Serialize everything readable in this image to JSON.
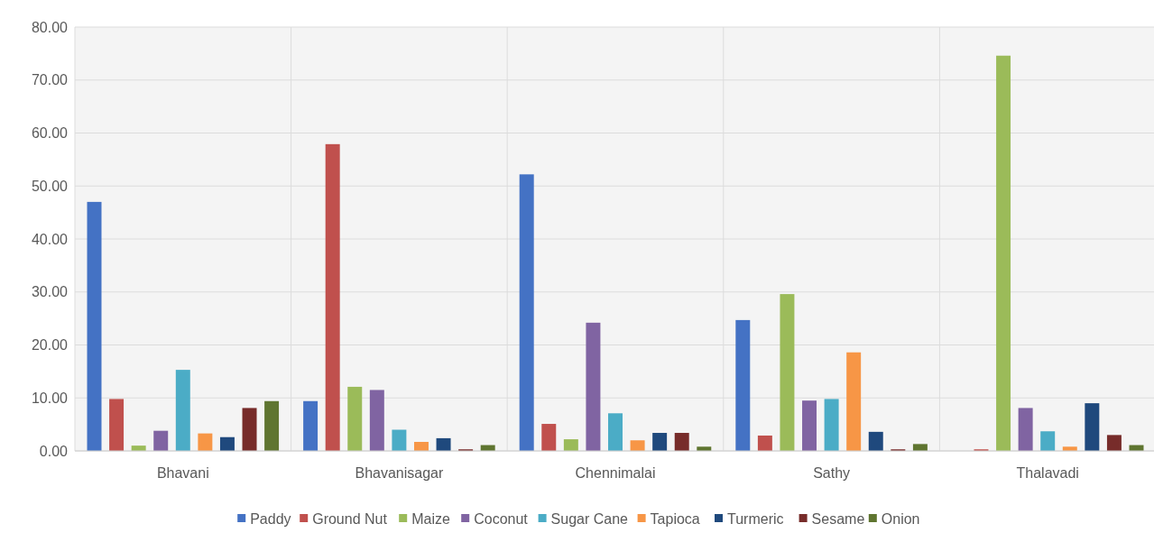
{
  "chart_data": {
    "type": "bar",
    "categories": [
      "Bhavani",
      "Bhavanisagar",
      "Chennimalai",
      "Sathy",
      "Thalavadi"
    ],
    "series": [
      {
        "name": "Paddy",
        "color": "#4472c4",
        "values": [
          47,
          9.4,
          52.2,
          24.7,
          0
        ]
      },
      {
        "name": "Ground Nut",
        "color": "#c0504d",
        "values": [
          9.8,
          57.9,
          5.1,
          2.9,
          0.3
        ]
      },
      {
        "name": "Maize",
        "color": "#9bbb59",
        "values": [
          1,
          12.1,
          2.2,
          29.6,
          74.6
        ]
      },
      {
        "name": "Coconut",
        "color": "#8064a2",
        "values": [
          3.8,
          11.5,
          24.2,
          9.5,
          8.1
        ]
      },
      {
        "name": "Sugar Cane",
        "color": "#4bacc6",
        "values": [
          15.3,
          4,
          7.1,
          9.8,
          3.7
        ]
      },
      {
        "name": "Tapioca",
        "color": "#f79646",
        "values": [
          3.3,
          1.7,
          2,
          18.6,
          0.8
        ]
      },
      {
        "name": "Turmeric",
        "color": "#1f497d",
        "values": [
          2.6,
          2.4,
          3.4,
          3.6,
          9
        ]
      },
      {
        "name": "Sesame",
        "color": "#772c2a",
        "values": [
          8.1,
          0.3,
          3.4,
          0.3,
          3
        ]
      },
      {
        "name": "Onion",
        "color": "#5f7530",
        "values": [
          9.4,
          1.1,
          0.8,
          1.3,
          1.1
        ]
      }
    ],
    "ylim": [
      0,
      80
    ],
    "yticks": [
      {
        "value": 0,
        "label": "0.00"
      },
      {
        "value": 10,
        "label": "10.00"
      },
      {
        "value": 20,
        "label": "20.00"
      },
      {
        "value": 30,
        "label": "30.00"
      },
      {
        "value": 40,
        "label": "40.00"
      },
      {
        "value": 50,
        "label": "50.00"
      },
      {
        "value": 60,
        "label": "60.00"
      },
      {
        "value": 70,
        "label": "70.00"
      },
      {
        "value": 80,
        "label": "80.00"
      }
    ],
    "grid": true,
    "legend": "bottom"
  }
}
